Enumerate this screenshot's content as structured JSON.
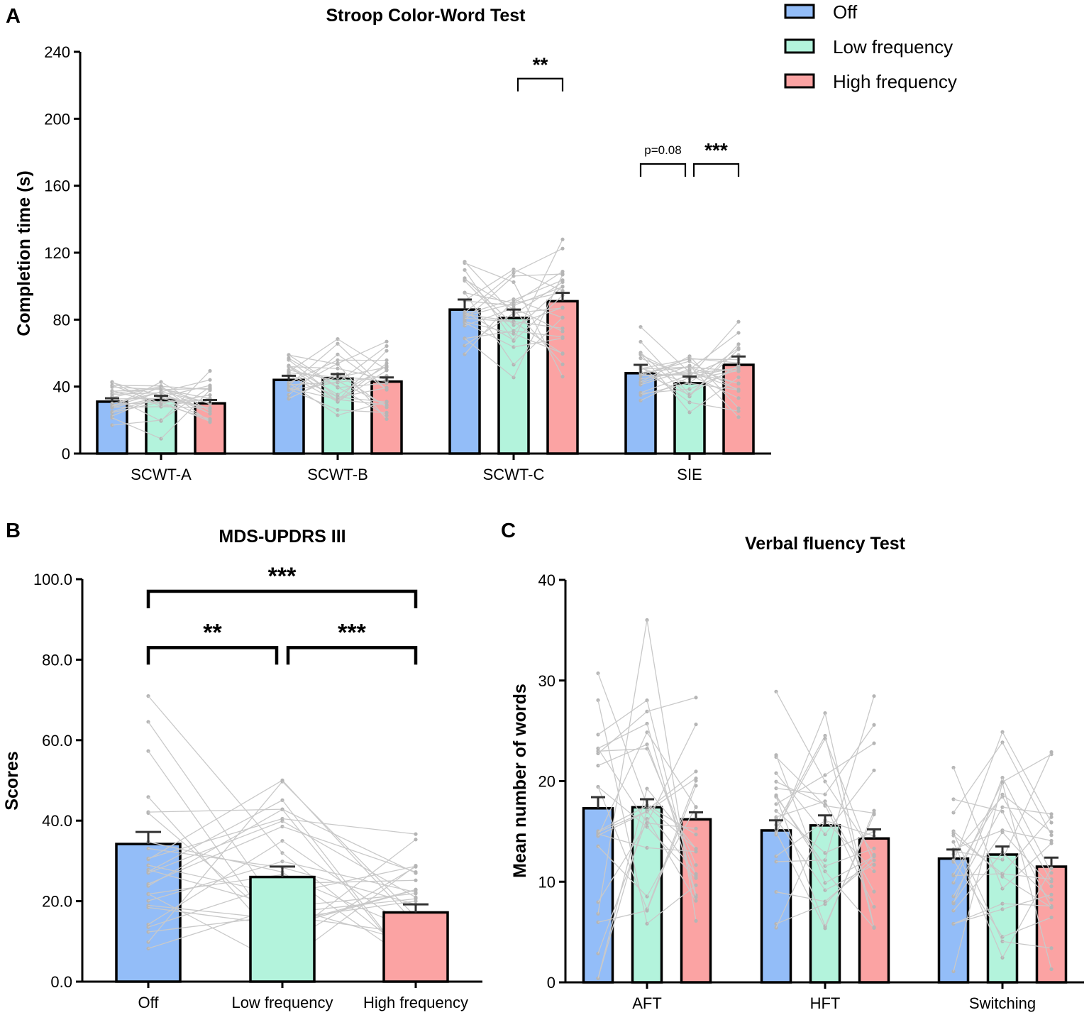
{
  "colors": {
    "off": "#93bdf8",
    "low": "#b3f3dc",
    "high": "#fba3a3",
    "lines": "#c9c9c9",
    "points": "#b5b5b5",
    "errorbar": "#333333"
  },
  "legend": [
    {
      "label": "Off",
      "key": "off"
    },
    {
      "label": "Low frequency",
      "key": "low"
    },
    {
      "label": "High frequency",
      "key": "high"
    }
  ],
  "chart_data": [
    {
      "panel": "A",
      "type": "bar",
      "title": "Stroop Color-Word Test",
      "ylabel": "Completion time (s)",
      "xlabel": "",
      "ylim": [
        0,
        240
      ],
      "yticks": [
        "0",
        "40",
        "80",
        "120",
        "160",
        "200",
        "240"
      ],
      "categories": [
        "SCWT-A",
        "SCWT-B",
        "SCWT-C",
        "SIE"
      ],
      "series": [
        {
          "name": "Off",
          "values": [
            31,
            44,
            86,
            48
          ],
          "sem": [
            2,
            2.5,
            6,
            5
          ]
        },
        {
          "name": "Low frequency",
          "values": [
            32,
            45,
            81,
            42
          ],
          "sem": [
            2.5,
            2.5,
            5,
            4
          ]
        },
        {
          "name": "High frequency",
          "values": [
            30,
            43,
            91,
            53
          ],
          "sem": [
            2,
            2.5,
            5,
            5
          ]
        }
      ],
      "annotations": [
        {
          "label": "**",
          "category": "SCWT-C",
          "from": 1,
          "to": 2,
          "y": 224
        },
        {
          "label": "p=0.08",
          "category": "SIE",
          "from": 0,
          "to": 1,
          "y": 173
        },
        {
          "label": "***",
          "category": "SIE",
          "from": 1,
          "to": 2,
          "y": 173
        }
      ]
    },
    {
      "panel": "B",
      "type": "bar",
      "title": "MDS-UPDRS III",
      "ylabel": "Scores",
      "xlabel": "",
      "ylim": [
        0,
        100
      ],
      "yticks": [
        "0.0",
        "20.0",
        "40.0",
        "60.0",
        "80.0",
        "100.0"
      ],
      "categories": [
        "Off",
        "Low frequency",
        "High frequency"
      ],
      "series": [
        {
          "name": "Scores",
          "values": [
            34.2,
            26.0,
            17.2
          ],
          "sem": [
            3.0,
            2.6,
            2.0
          ]
        }
      ],
      "annotations": [
        {
          "label": "***",
          "from": 0,
          "to": 2,
          "y": 97
        },
        {
          "label": "**",
          "from": 0,
          "to": 1,
          "y": 83
        },
        {
          "label": "***",
          "from": 1,
          "to": 2,
          "y": 83
        }
      ]
    },
    {
      "panel": "C",
      "type": "bar",
      "title": "Verbal fluency Test",
      "ylabel": "Mean number of words",
      "xlabel": "",
      "ylim": [
        0,
        40
      ],
      "yticks": [
        "0",
        "10",
        "20",
        "30",
        "40"
      ],
      "categories": [
        "AFT",
        "HFT",
        "Switching"
      ],
      "series": [
        {
          "name": "Off",
          "values": [
            17.3,
            15.1,
            12.3
          ],
          "sem": [
            1.1,
            1.0,
            0.9
          ]
        },
        {
          "name": "Low frequency",
          "values": [
            17.4,
            15.6,
            12.7
          ],
          "sem": [
            0.8,
            1.0,
            0.8
          ]
        },
        {
          "name": "High frequency",
          "values": [
            16.2,
            14.3,
            11.5
          ],
          "sem": [
            0.7,
            0.9,
            0.9
          ]
        }
      ],
      "annotations": []
    }
  ]
}
